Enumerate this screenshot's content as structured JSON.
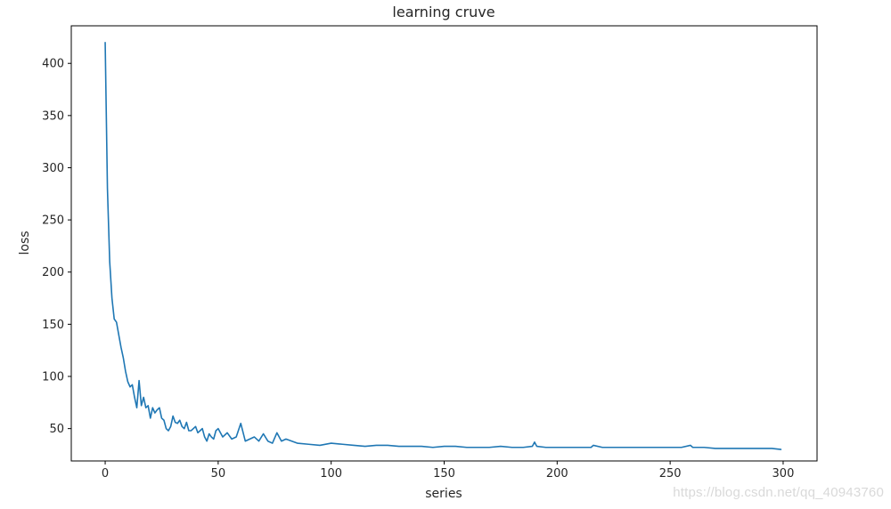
{
  "chart_data": {
    "type": "line",
    "title": "learning cruve",
    "xlabel": "series",
    "ylabel": "loss",
    "xlim": [
      -15,
      315
    ],
    "ylim": [
      19,
      436
    ],
    "xticks": [
      0,
      50,
      100,
      150,
      200,
      250,
      300
    ],
    "yticks": [
      50,
      100,
      150,
      200,
      250,
      300,
      350,
      400
    ],
    "grid": false,
    "series": [
      {
        "color": "#1f77b4",
        "x": [
          0,
          1,
          2,
          3,
          4,
          5,
          6,
          7,
          8,
          9,
          10,
          11,
          12,
          13,
          14,
          15,
          16,
          17,
          18,
          19,
          20,
          21,
          22,
          23,
          24,
          25,
          26,
          27,
          28,
          29,
          30,
          31,
          32,
          33,
          34,
          35,
          36,
          37,
          38,
          39,
          40,
          41,
          42,
          43,
          44,
          45,
          46,
          47,
          48,
          49,
          50,
          52,
          54,
          56,
          58,
          60,
          62,
          64,
          66,
          68,
          70,
          72,
          74,
          76,
          78,
          80,
          85,
          90,
          95,
          100,
          105,
          110,
          115,
          120,
          125,
          130,
          135,
          140,
          145,
          150,
          155,
          160,
          165,
          170,
          175,
          180,
          185,
          189,
          190,
          191,
          195,
          200,
          205,
          210,
          215,
          216,
          220,
          225,
          230,
          235,
          240,
          245,
          250,
          255,
          259,
          260,
          265,
          270,
          275,
          280,
          285,
          290,
          295,
          299
        ],
        "y": [
          420,
          280,
          210,
          175,
          155,
          152,
          140,
          128,
          118,
          105,
          95,
          90,
          92,
          80,
          70,
          96,
          72,
          80,
          70,
          72,
          60,
          70,
          65,
          68,
          70,
          60,
          58,
          50,
          48,
          52,
          62,
          56,
          55,
          58,
          52,
          50,
          56,
          48,
          48,
          50,
          52,
          46,
          48,
          50,
          42,
          38,
          45,
          42,
          40,
          48,
          50,
          42,
          46,
          40,
          42,
          55,
          38,
          40,
          42,
          38,
          45,
          38,
          36,
          46,
          38,
          40,
          36,
          35,
          34,
          36,
          35,
          34,
          33,
          34,
          34,
          33,
          33,
          33,
          32,
          33,
          33,
          32,
          32,
          32,
          33,
          32,
          32,
          33,
          37,
          33,
          32,
          32,
          32,
          32,
          32,
          34,
          32,
          32,
          32,
          32,
          32,
          32,
          32,
          32,
          34,
          32,
          32,
          31,
          31,
          31,
          31,
          31,
          31,
          30
        ]
      }
    ]
  },
  "watermark": "https://blog.csdn.net/qq_40943760"
}
